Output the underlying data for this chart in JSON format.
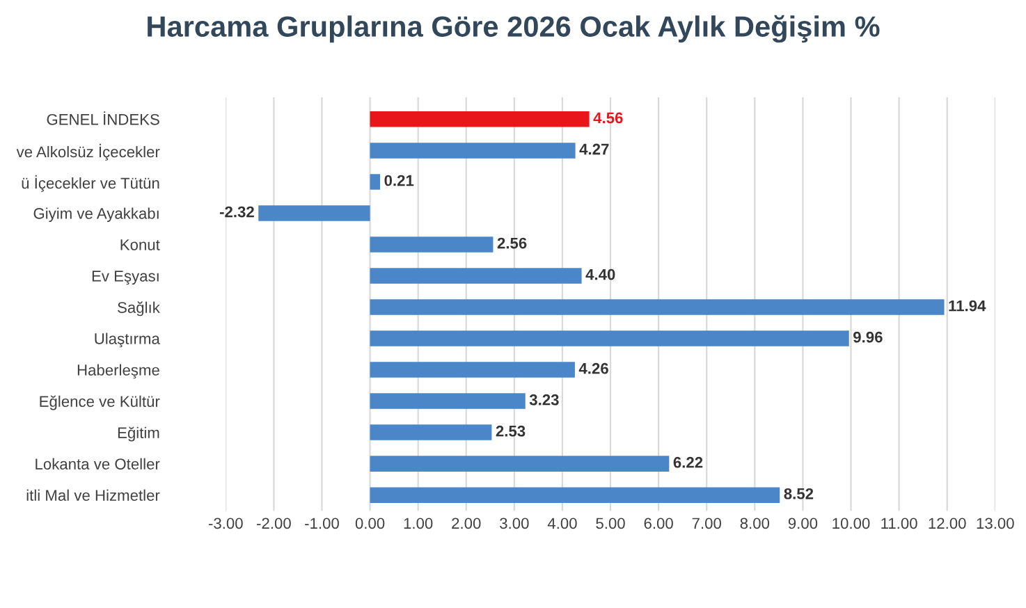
{
  "chart_data": {
    "type": "bar",
    "orientation": "horizontal",
    "title": "Harcama Gruplarına Göre 2026 Ocak Aylık Değişim %",
    "categories": [
      "GENEL İNDEKS",
      "ve Alkolsüz İçecekler",
      "ü İçecekler ve Tütün",
      "Giyim ve Ayakkabı",
      "Konut",
      "Ev Eşyası",
      "Sağlık",
      "Ulaştırma",
      "Haberleşme",
      "Eğlence ve Kültür",
      "Eğitim",
      "Lokanta ve Oteller",
      "itli Mal ve Hizmetler"
    ],
    "values": [
      4.56,
      4.27,
      0.21,
      -2.32,
      2.56,
      4.4,
      11.94,
      9.96,
      4.26,
      3.23,
      2.53,
      6.22,
      8.52
    ],
    "value_labels": [
      "4.56",
      "4.27",
      "0.21",
      "-2.32",
      "2.56",
      "4.40",
      "11.94",
      "9.96",
      "4.26",
      "3.23",
      "2.53",
      "6.22",
      "8.52"
    ],
    "colors": [
      "#e8151b",
      "#4a86c8",
      "#4a86c8",
      "#4a86c8",
      "#4a86c8",
      "#4a86c8",
      "#4a86c8",
      "#4a86c8",
      "#4a86c8",
      "#4a86c8",
      "#4a86c8",
      "#4a86c8",
      "#4a86c8"
    ],
    "xlim": [
      -3,
      13
    ],
    "xticks": [
      {
        "value": -3,
        "label": "-3.00"
      },
      {
        "value": -2,
        "label": "-2.00"
      },
      {
        "value": -1,
        "label": "-1.00"
      },
      {
        "value": 0,
        "label": "0.00"
      },
      {
        "value": 1,
        "label": "1.00"
      },
      {
        "value": 2,
        "label": "2.00"
      },
      {
        "value": 3,
        "label": "3.00"
      },
      {
        "value": 4,
        "label": "4.00"
      },
      {
        "value": 5,
        "label": "5.00"
      },
      {
        "value": 6,
        "label": "6.00"
      },
      {
        "value": 7,
        "label": "7.00"
      },
      {
        "value": 8,
        "label": "8.00"
      },
      {
        "value": 9,
        "label": "9.00"
      },
      {
        "value": 10,
        "label": "10.00"
      },
      {
        "value": 11,
        "label": "11.00"
      },
      {
        "value": 12,
        "label": "12.00"
      },
      {
        "value": 13,
        "label": "13.00"
      }
    ],
    "grid": "x"
  }
}
